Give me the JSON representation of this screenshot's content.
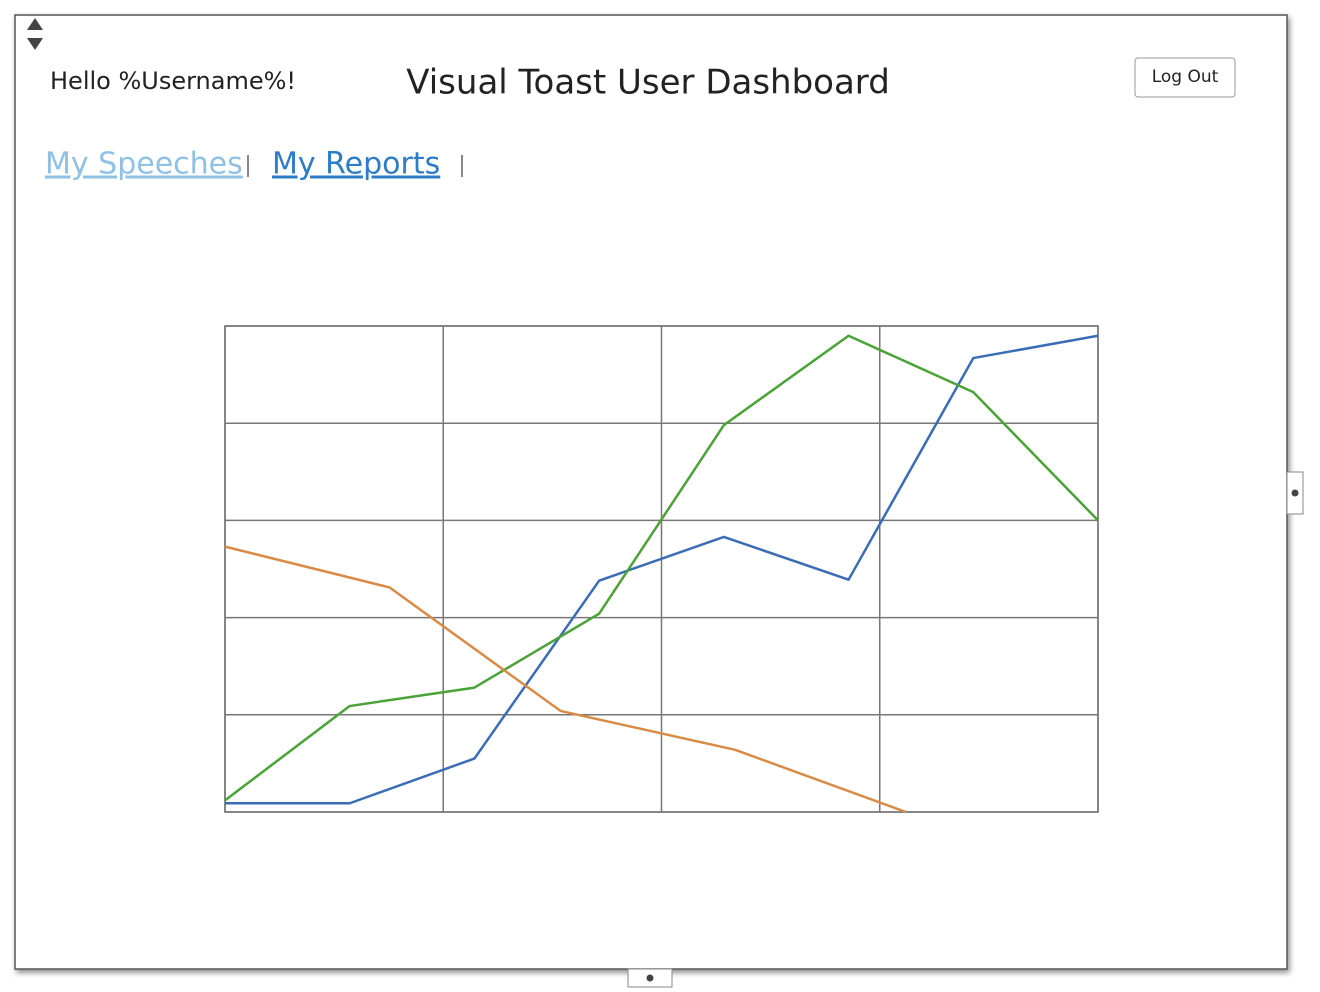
{
  "header": {
    "greeting": "Hello %Username%!",
    "title": "Visual Toast User Dashboard",
    "logout": "Log Out"
  },
  "nav": [
    "My Speeches",
    "My Reports"
  ],
  "chart_data": {
    "type": "line",
    "xlim": [
      0,
      7
    ],
    "ylim": [
      0,
      5
    ],
    "xticks": [
      0,
      1.75,
      3.5,
      5.25,
      7
    ],
    "yticks": [
      0,
      1,
      2,
      3,
      4,
      5
    ],
    "grid": true,
    "series": [
      {
        "color": "#3a6db5",
        "x": [
          0,
          1,
          2,
          3,
          4,
          5,
          6,
          7
        ],
        "values": [
          0.09,
          0.09,
          0.55,
          2.38,
          2.83,
          2.39,
          4.67,
          4.9
        ]
      },
      {
        "color": "#4aa336",
        "x": [
          0,
          1,
          2,
          3,
          4,
          5,
          6,
          7
        ],
        "values": [
          0.12,
          1.09,
          1.28,
          2.04,
          3.98,
          4.9,
          4.32,
          3.0
        ]
      },
      {
        "color": "#d98a45",
        "x": [
          0,
          1.32,
          2.69,
          4.09,
          5.46
        ],
        "values": [
          2.73,
          2.31,
          1.04,
          0.64,
          0
        ]
      }
    ]
  }
}
